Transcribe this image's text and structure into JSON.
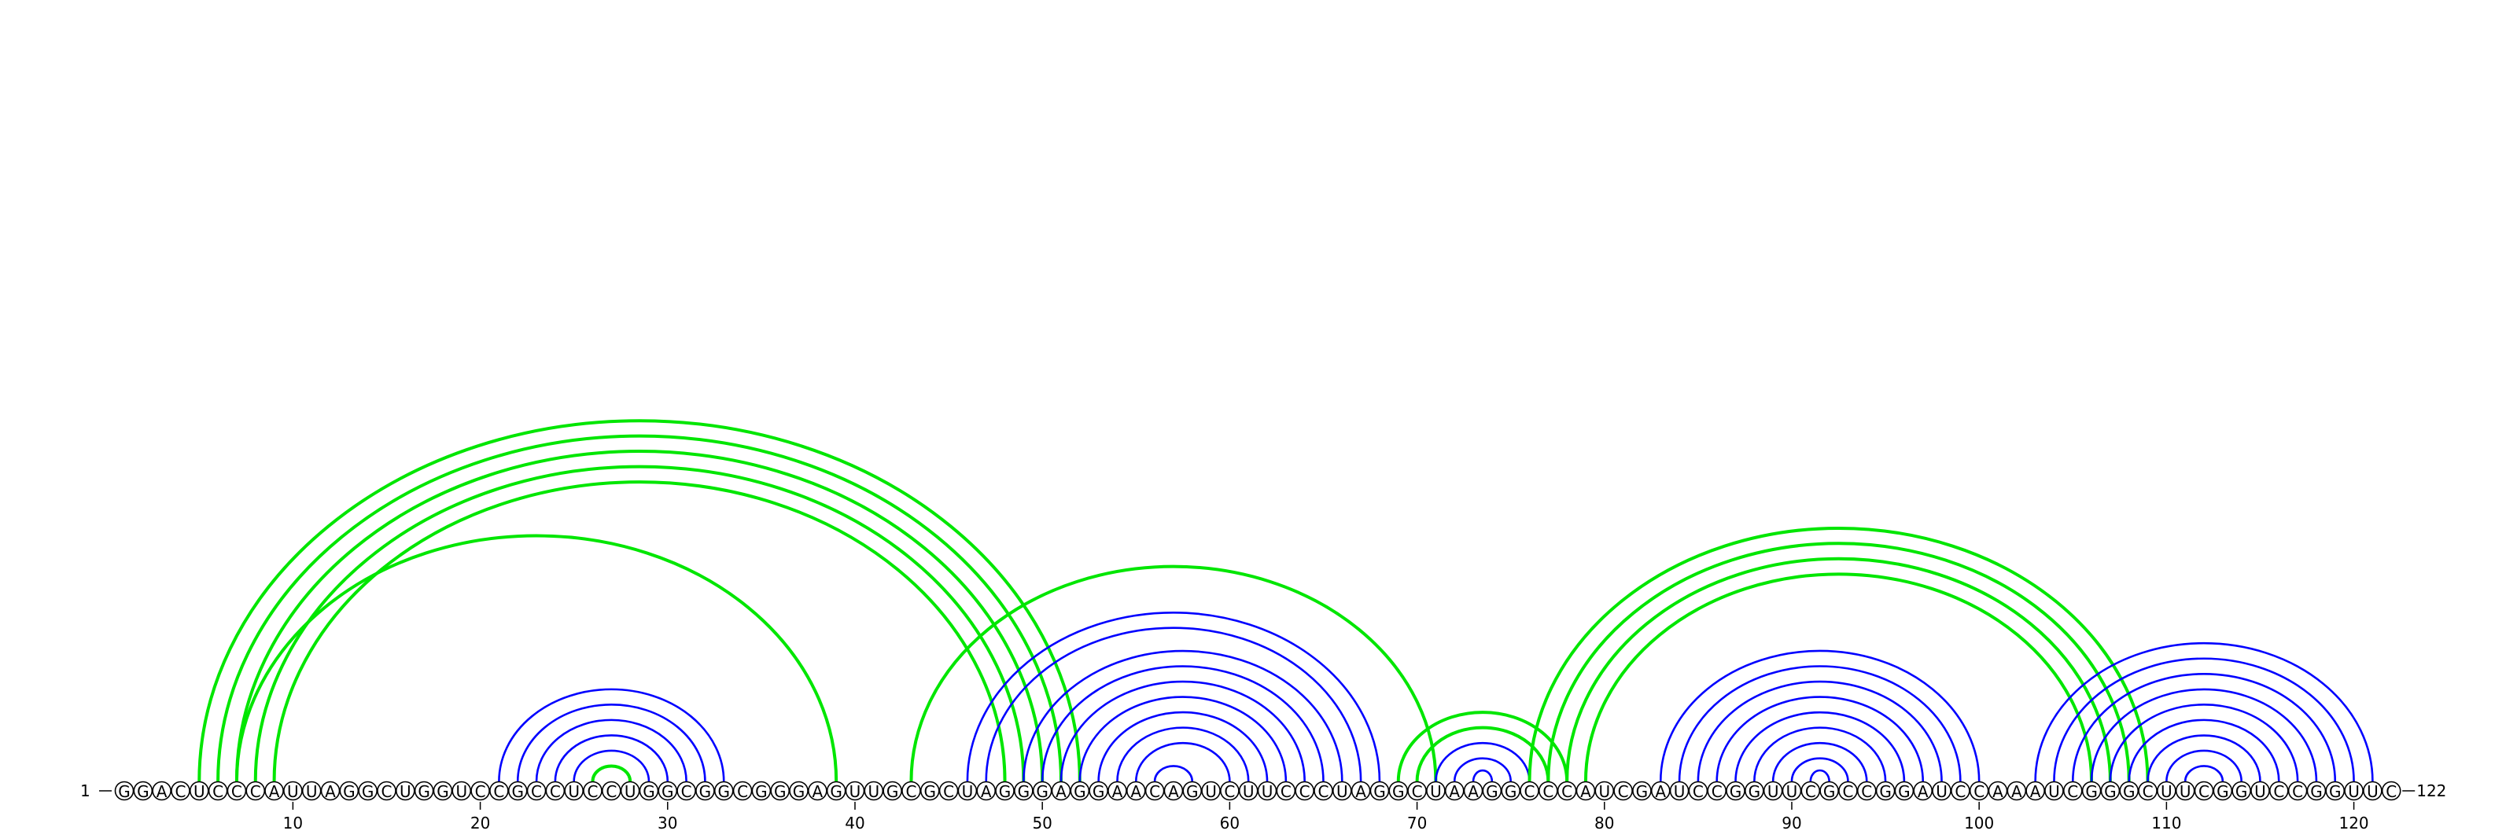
{
  "sequence": "GGACUCCCAUUAGGCUGGUCCGCCUCCUGGCGGCGGGAGUUGCGCUAGGGAGGAACAGUCUUCCCUAGGCUAAGGCCCAUCGAUCCGGUUCGCCGGAUCCAAAUCGGGCUUCGGUCCGGUUC",
  "start_label": "1",
  "end_label": "122",
  "tick_positions": [
    10,
    20,
    30,
    40,
    50,
    60,
    70,
    80,
    90,
    100,
    110,
    120
  ],
  "tick_labels": [
    "10",
    "20",
    "30",
    "40",
    "50",
    "60",
    "70",
    "80",
    "90",
    "100",
    "110",
    "120"
  ],
  "colors": {
    "nested_arc": "#0000ff",
    "crossing_arc": "#00e600",
    "nucleotide_outline": "#000000"
  },
  "arcs": [
    {
      "i": 21,
      "j": 33,
      "type": "nested"
    },
    {
      "i": 22,
      "j": 32,
      "type": "nested"
    },
    {
      "i": 23,
      "j": 31,
      "type": "nested"
    },
    {
      "i": 24,
      "j": 30,
      "type": "nested"
    },
    {
      "i": 25,
      "j": 29,
      "type": "nested"
    },
    {
      "i": 26,
      "j": 28,
      "type": "crossing"
    },
    {
      "i": 5,
      "j": 52,
      "type": "crossing"
    },
    {
      "i": 6,
      "j": 51,
      "type": "crossing"
    },
    {
      "i": 7,
      "j": 50,
      "type": "crossing"
    },
    {
      "i": 8,
      "j": 49,
      "type": "crossing"
    },
    {
      "i": 9,
      "j": 48,
      "type": "crossing"
    },
    {
      "i": 7,
      "j": 39,
      "type": "crossing"
    },
    {
      "i": 43,
      "j": 71,
      "type": "crossing"
    },
    {
      "i": 46,
      "j": 68,
      "type": "nested"
    },
    {
      "i": 47,
      "j": 67,
      "type": "nested"
    },
    {
      "i": 49,
      "j": 66,
      "type": "nested"
    },
    {
      "i": 50,
      "j": 65,
      "type": "nested"
    },
    {
      "i": 51,
      "j": 64,
      "type": "nested"
    },
    {
      "i": 52,
      "j": 63,
      "type": "nested"
    },
    {
      "i": 53,
      "j": 62,
      "type": "nested"
    },
    {
      "i": 54,
      "j": 61,
      "type": "nested"
    },
    {
      "i": 55,
      "j": 60,
      "type": "nested"
    },
    {
      "i": 56,
      "j": 58,
      "type": "nested"
    },
    {
      "i": 69,
      "j": 78,
      "type": "crossing"
    },
    {
      "i": 70,
      "j": 77,
      "type": "crossing"
    },
    {
      "i": 71,
      "j": 76,
      "type": "nested"
    },
    {
      "i": 72,
      "j": 75,
      "type": "nested"
    },
    {
      "i": 73,
      "j": 74,
      "type": "nested"
    },
    {
      "i": 76,
      "j": 109,
      "type": "crossing"
    },
    {
      "i": 77,
      "j": 108,
      "type": "crossing"
    },
    {
      "i": 78,
      "j": 107,
      "type": "crossing"
    },
    {
      "i": 79,
      "j": 106,
      "type": "crossing"
    },
    {
      "i": 83,
      "j": 100,
      "type": "nested"
    },
    {
      "i": 84,
      "j": 99,
      "type": "nested"
    },
    {
      "i": 85,
      "j": 98,
      "type": "nested"
    },
    {
      "i": 86,
      "j": 97,
      "type": "nested"
    },
    {
      "i": 87,
      "j": 96,
      "type": "nested"
    },
    {
      "i": 88,
      "j": 95,
      "type": "nested"
    },
    {
      "i": 89,
      "j": 94,
      "type": "nested"
    },
    {
      "i": 90,
      "j": 93,
      "type": "nested"
    },
    {
      "i": 91,
      "j": 92,
      "type": "nested"
    },
    {
      "i": 103,
      "j": 121,
      "type": "nested"
    },
    {
      "i": 104,
      "j": 120,
      "type": "nested"
    },
    {
      "i": 105,
      "j": 119,
      "type": "nested"
    },
    {
      "i": 106,
      "j": 118,
      "type": "nested"
    },
    {
      "i": 107,
      "j": 117,
      "type": "nested"
    },
    {
      "i": 108,
      "j": 116,
      "type": "nested"
    },
    {
      "i": 109,
      "j": 115,
      "type": "nested"
    },
    {
      "i": 110,
      "j": 114,
      "type": "nested"
    },
    {
      "i": 111,
      "j": 113,
      "type": "nested"
    }
  ]
}
